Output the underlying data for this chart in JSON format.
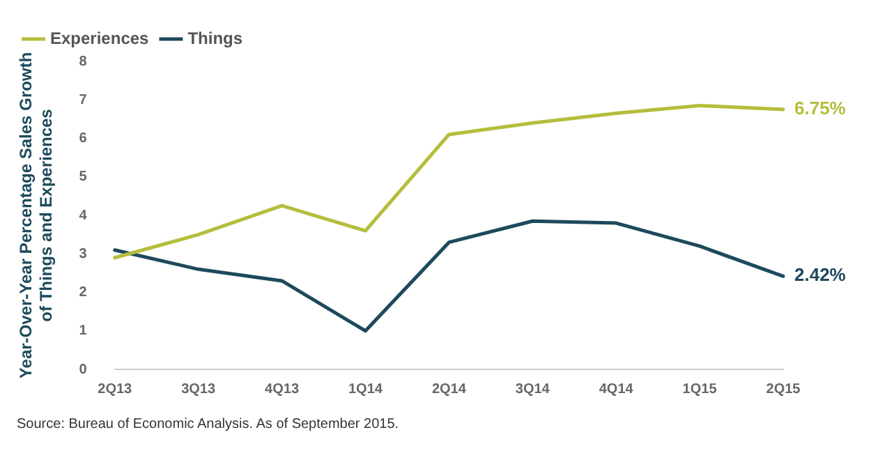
{
  "chart_data": {
    "type": "line",
    "ylabel": "Year-Over-Year Percentage Sales Growth\nof Things and Experiences",
    "categories": [
      "2Q13",
      "3Q13",
      "4Q13",
      "1Q14",
      "2Q14",
      "3Q14",
      "4Q14",
      "1Q15",
      "2Q15"
    ],
    "series": [
      {
        "name": "Experiences",
        "color": "#b5bd3c",
        "values": [
          2.9,
          3.5,
          4.25,
          3.6,
          6.1,
          6.4,
          6.65,
          6.85,
          6.75
        ],
        "value_labels": [
          null,
          null,
          null,
          null,
          null,
          null,
          null,
          null,
          "6.75%"
        ]
      },
      {
        "name": "Things",
        "color": "#1d4a5c",
        "values": [
          3.1,
          2.6,
          2.3,
          1.0,
          3.3,
          3.85,
          3.8,
          3.2,
          2.42
        ],
        "value_labels": [
          null,
          null,
          null,
          null,
          null,
          null,
          null,
          null,
          "2.42%"
        ]
      }
    ],
    "ylim": [
      0,
      8
    ],
    "yticks": [
      0,
      1,
      2,
      3,
      4,
      5,
      6,
      7,
      8
    ],
    "grid": false,
    "legend": "top left",
    "marker": "none",
    "line_style": "solid",
    "annotations": [
      "Source: Bureau of Economic Analysis. As of September 2015."
    ]
  }
}
